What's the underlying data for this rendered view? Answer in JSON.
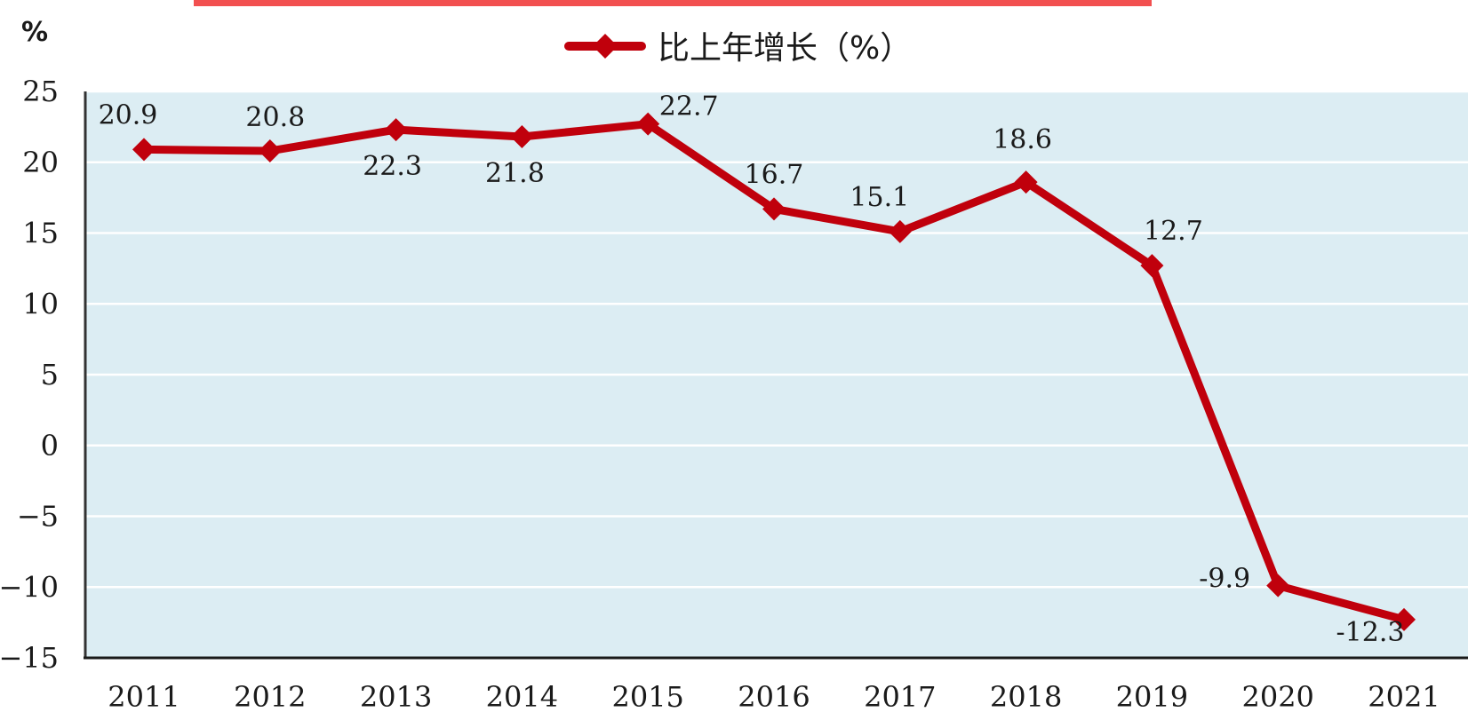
{
  "chart_data": {
    "type": "line",
    "unit_label": "%",
    "categories": [
      "2011",
      "2012",
      "2013",
      "2014",
      "2015",
      "2016",
      "2017",
      "2018",
      "2019",
      "2020",
      "2021"
    ],
    "series": [
      {
        "name": "比上年增长（%）",
        "values": [
          20.9,
          20.8,
          22.3,
          21.8,
          22.7,
          16.7,
          15.1,
          18.6,
          12.7,
          -9.9,
          -12.3
        ],
        "labels": [
          "20.9",
          "20.8",
          "22.3",
          "21.8",
          "22.7",
          "16.7",
          "15.1",
          "18.6",
          "12.7",
          "-9.9",
          "-12.3"
        ]
      }
    ],
    "yticks": [
      "25",
      "20",
      "15",
      "10",
      "5",
      "0",
      "−5",
      "−10",
      "−15"
    ],
    "ylim": [
      -15,
      25
    ],
    "grid": true,
    "legend_position": "top-center",
    "colors": {
      "line": "#c0000c",
      "plot_background": "#dcedf3",
      "gridline": "#ffffff",
      "header_bar": "#f25050"
    }
  }
}
